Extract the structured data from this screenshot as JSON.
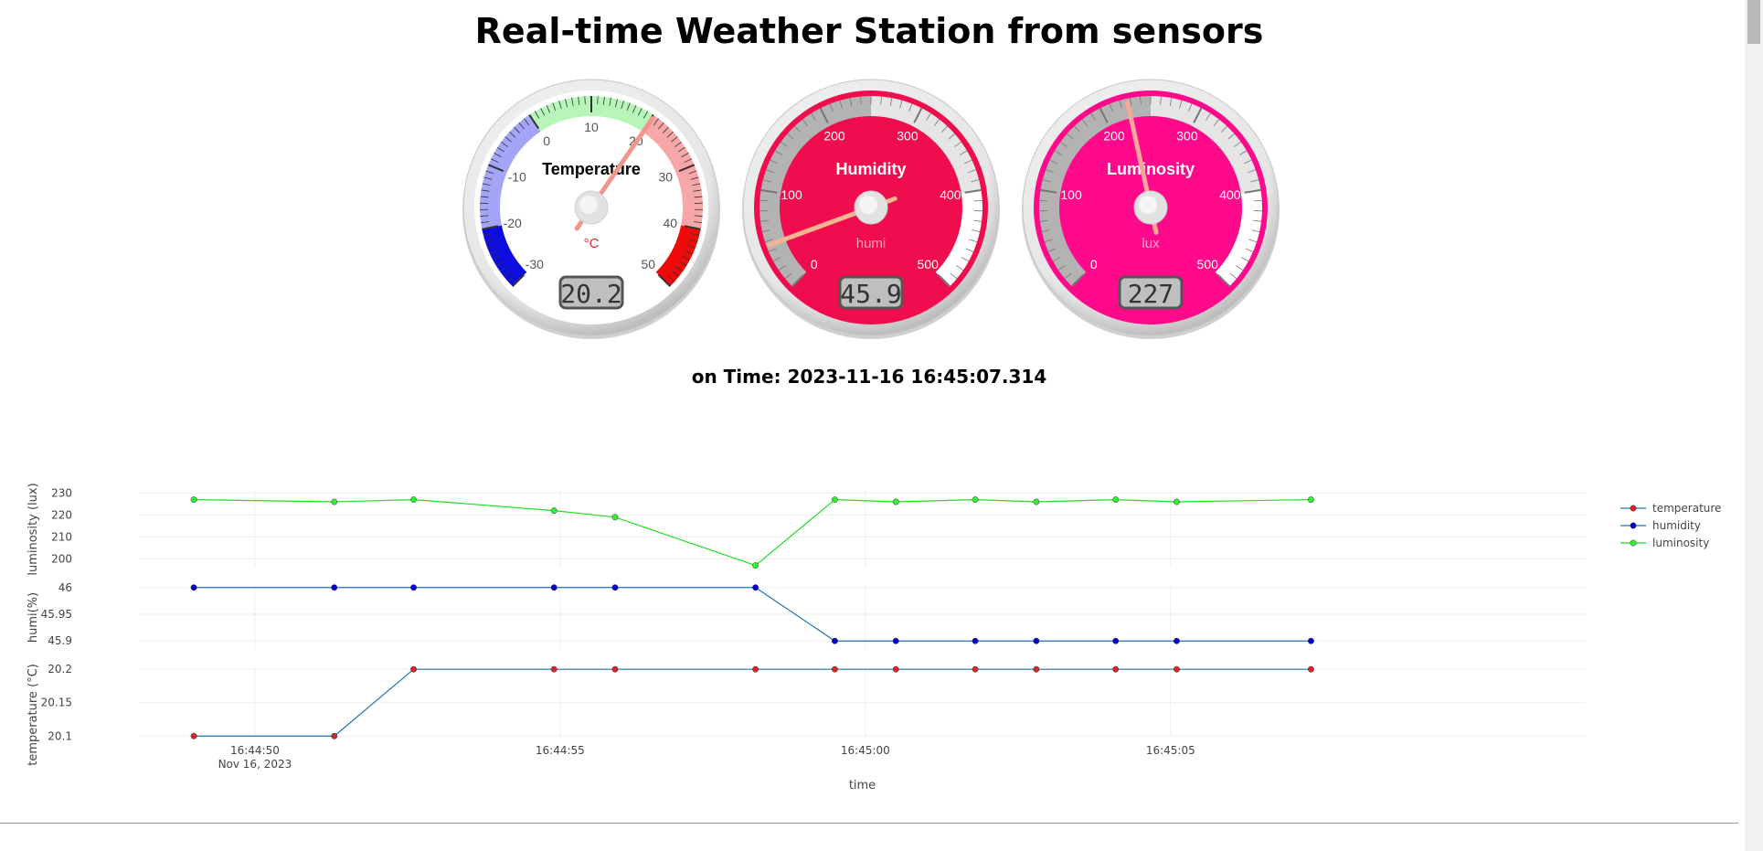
{
  "page": {
    "title": "Real-time Weather Station from sensors"
  },
  "status": {
    "timestamp": "on Time: 2023-11-16 16:45:07.314"
  },
  "gauges": [
    {
      "title": "Temperature",
      "unit": "°C",
      "value": 20.2,
      "display": "20.2",
      "min": -30,
      "max": 50,
      "ticks": [
        "-30",
        "-20",
        "-10",
        "0",
        "10",
        "20",
        "30",
        "40",
        "50"
      ],
      "face_color": "#ffffff",
      "title_color": "#000000",
      "tick_label_color": "#555555",
      "unit_color": "#e8202a",
      "needle_color": "#f4958c",
      "bands": [
        {
          "from": -30,
          "to": -20,
          "color": "#0d0de0"
        },
        {
          "from": -20,
          "to": 0,
          "color": "#a5a5f7"
        },
        {
          "from": 0,
          "to": 20,
          "color": "#b8f5b8"
        },
        {
          "from": 20,
          "to": 40,
          "color": "#f7a7a7"
        },
        {
          "from": 40,
          "to": 50,
          "color": "#ee0a0a"
        }
      ]
    },
    {
      "title": "Humidity",
      "unit": "humi",
      "value": 45.9,
      "display": "45.9",
      "min": 0,
      "max": 500,
      "ticks": [
        "0",
        "100",
        "200",
        "300",
        "400",
        "500"
      ],
      "face_color": "#f00d4e",
      "title_color": "#ffffff",
      "tick_label_color": "#ffffff",
      "unit_color": "#f3a7b8",
      "needle_color": "#f4b592",
      "bands": [
        {
          "from": 0,
          "to": 250,
          "color": "#b3b3b3"
        },
        {
          "from": 250,
          "to": 400,
          "color": "#e5e5e5"
        },
        {
          "from": 400,
          "to": 500,
          "color": "#ffffff"
        }
      ]
    },
    {
      "title": "Luminosity",
      "unit": "lux",
      "value": 227,
      "display": "227",
      "min": 0,
      "max": 500,
      "ticks": [
        "0",
        "100",
        "200",
        "300",
        "400",
        "500"
      ],
      "face_color": "#ff0a8a",
      "title_color": "#ffffff",
      "tick_label_color": "#ffffff",
      "unit_color": "#f7a6d0",
      "needle_color": "#f6a89b",
      "bands": [
        {
          "from": 0,
          "to": 250,
          "color": "#b3b3b3"
        },
        {
          "from": 250,
          "to": 400,
          "color": "#e5e5e5"
        },
        {
          "from": 400,
          "to": 500,
          "color": "#ffffff"
        }
      ]
    }
  ],
  "chart_data": {
    "type": "line",
    "xlabel": "time",
    "x_tick_labels": [
      "16:44:50",
      "16:44:55",
      "16:45:00",
      "16:45:05"
    ],
    "x_tick_values": [
      "16:44:50",
      "16:44:55",
      "16:45:00",
      "16:45:05"
    ],
    "x_date_label": "Nov 16, 2023",
    "xlim": [
      "16:44:48.1",
      "16:45:11.8"
    ],
    "x": [
      "16:44:49.0",
      "16:44:51.3",
      "16:44:52.6",
      "16:44:54.9",
      "16:44:55.9",
      "16:44:58.2",
      "16:44:59.5",
      "16:45:00.5",
      "16:45:01.8",
      "16:45:02.8",
      "16:45:04.1",
      "16:45:05.1",
      "16:45:07.3"
    ],
    "legend_position": "right",
    "grid": true,
    "series": [
      {
        "name": "temperature",
        "color": "#1f77b4",
        "marker_color": "#d62728",
        "values": [
          20.1,
          20.1,
          20.2,
          20.2,
          20.2,
          20.2,
          20.2,
          20.2,
          20.2,
          20.2,
          20.2,
          20.2,
          20.2
        ]
      },
      {
        "name": "humidity",
        "color": "#1f77b4",
        "marker_color": "#0000cd",
        "values": [
          46,
          46,
          46,
          46,
          46,
          46,
          45.9,
          45.9,
          45.9,
          45.9,
          45.9,
          45.9,
          45.9
        ]
      },
      {
        "name": "luminosity",
        "color": "#22dd22",
        "marker_color": "#33ee33",
        "values": [
          227,
          226,
          227,
          222,
          219,
          197,
          227,
          226,
          227,
          226,
          227,
          226,
          227
        ]
      }
    ],
    "subplots": [
      {
        "series": "luminosity",
        "ylabel": "luminosity (lux)",
        "ylim": [
          196,
          231
        ],
        "ticks": [
          200,
          210,
          220,
          230
        ],
        "tick_labels": [
          "200",
          "210",
          "220",
          "230"
        ]
      },
      {
        "series": "humidity",
        "ylabel": "humi(%)",
        "ylim": [
          45.885,
          46.003
        ],
        "ticks": [
          45.9,
          45.95,
          46
        ],
        "tick_labels": [
          "45.9",
          "45.95",
          "46"
        ]
      },
      {
        "series": "temperature",
        "ylabel": "temperature (°C)",
        "ylim": [
          20.099,
          20.203
        ],
        "ticks": [
          20.1,
          20.15,
          20.2
        ],
        "tick_labels": [
          "20.1",
          "20.15",
          "20.2"
        ]
      }
    ]
  }
}
